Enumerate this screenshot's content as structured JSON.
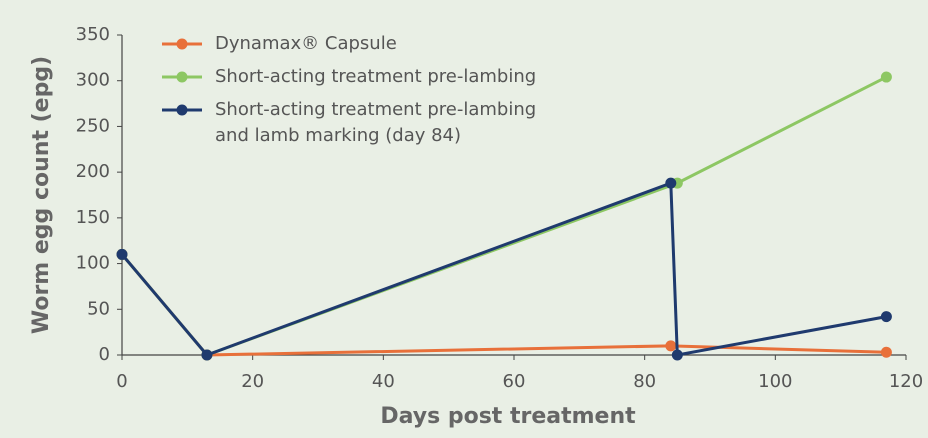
{
  "chart_data": {
    "type": "line",
    "x_label": "Days post treatment",
    "y_label": "Worm egg count (epg)",
    "xlim": [
      0,
      120
    ],
    "xticks": [
      0,
      20,
      40,
      60,
      80,
      100,
      120
    ],
    "ylim": [
      0,
      350
    ],
    "yticks": [
      0,
      50,
      100,
      150,
      200,
      250,
      300,
      350
    ],
    "series": [
      {
        "name": "Dynamax® Capsule",
        "color": "#e8703a",
        "x": [
          0,
          13,
          84,
          117
        ],
        "values": [
          110,
          0,
          10,
          3
        ]
      },
      {
        "name": "Short-acting treatment pre-lambing",
        "color": "#8dc763",
        "x": [
          0,
          13,
          85,
          117
        ],
        "values": [
          110,
          0,
          188,
          304
        ]
      },
      {
        "name": "Short-acting treatment pre-lambing\nand lamb marking (day 84)",
        "color": "#1f3a6e",
        "x": [
          0,
          13,
          84,
          85,
          117
        ],
        "values": [
          110,
          0,
          188,
          0,
          42
        ]
      }
    ]
  }
}
